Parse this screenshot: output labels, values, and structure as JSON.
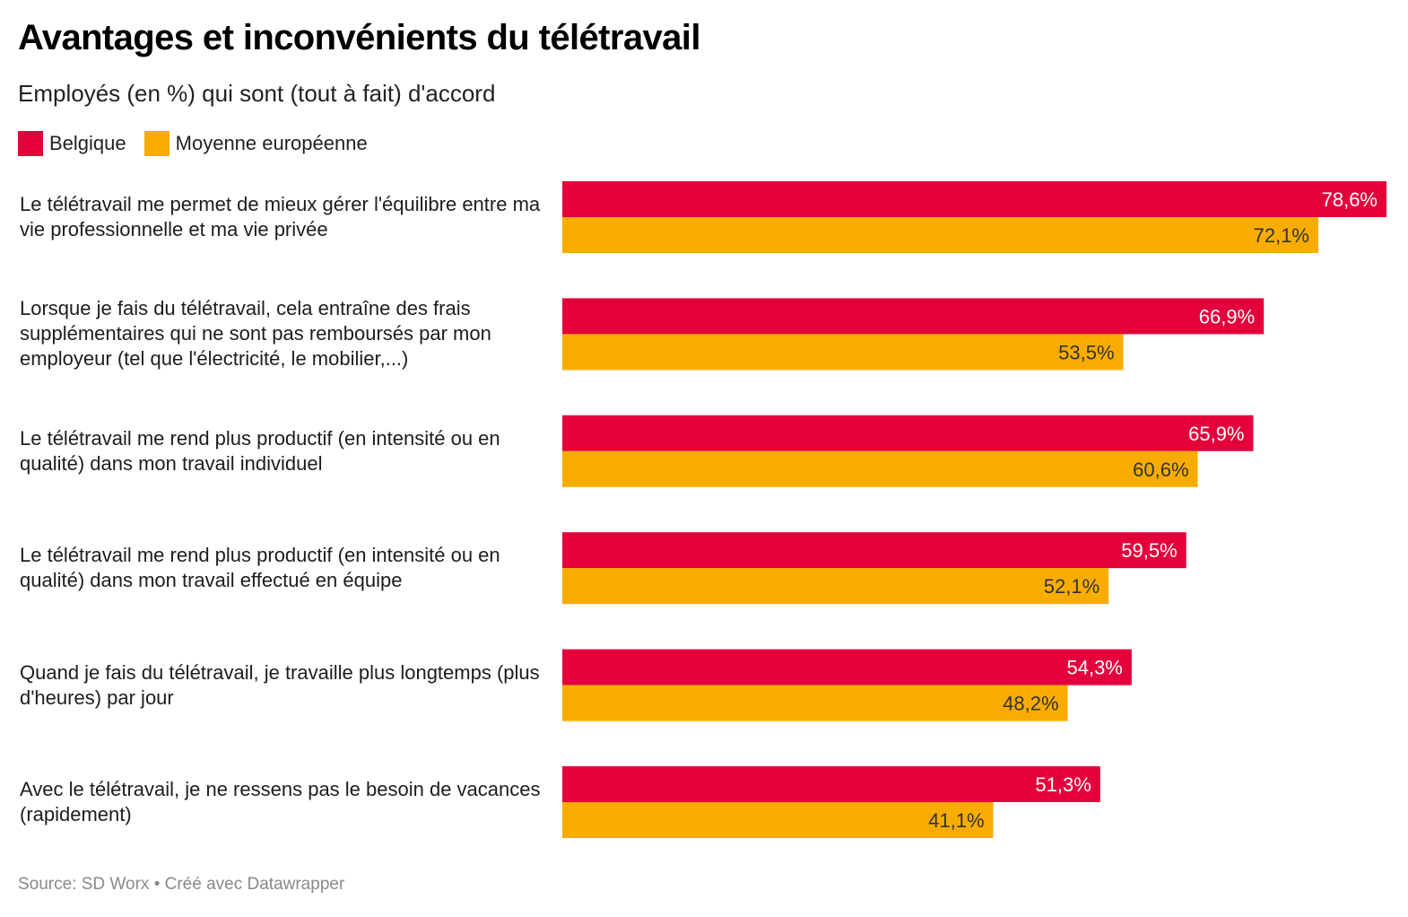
{
  "colors": {
    "belgique": "#e4003b",
    "europe": "#f9ac00",
    "label_on_red": "#ffffff",
    "label_on_orange": "#333333"
  },
  "chart_data": {
    "type": "bar",
    "orientation": "horizontal",
    "title": "Avantages et inconvénients du télétravail",
    "subtitle": "Employés (en %) qui sont (tout à fait) d'accord",
    "xlim": [
      0,
      78.6
    ],
    "grid": false,
    "legend_position": "top-left",
    "categories": [
      "Le télétravail me permet de mieux gérer l'équilibre entre ma vie professionnelle et ma vie privée",
      "Lorsque je fais du télétravail, cela entraîne des frais supplémentaires qui ne sont pas remboursés par mon employeur (tel que l'électricité, le mobilier,...)",
      "Le télétravail me rend plus productif (en intensité ou en qualité) dans mon travail individuel",
      "Le télétravail me rend plus productif (en intensité ou en qualité) dans mon travail effectué en équipe",
      "Quand je fais du télétravail, je travaille plus longtemps (plus d'heures) par jour",
      "Avec le télétravail, je ne ressens pas le besoin de vacances (rapidement)"
    ],
    "series": [
      {
        "name": "Belgique",
        "values": [
          78.6,
          66.9,
          65.9,
          59.5,
          54.3,
          51.3
        ],
        "labels": [
          "78,6%",
          "66,9%",
          "65,9%",
          "59,5%",
          "54,3%",
          "51,3%"
        ]
      },
      {
        "name": "Moyenne européenne",
        "values": [
          72.1,
          53.5,
          60.6,
          52.1,
          48.2,
          41.1
        ],
        "labels": [
          "72,1%",
          "53,5%",
          "60,6%",
          "52,1%",
          "48,2%",
          "41,1%"
        ]
      }
    ],
    "source": "Source: SD Worx • Créé avec Datawrapper"
  }
}
